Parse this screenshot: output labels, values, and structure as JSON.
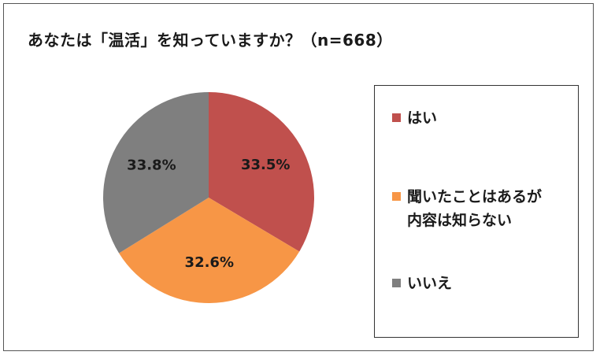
{
  "chart_data": {
    "type": "pie",
    "title": "あなたは「温活」を知っていますか？（n=668）",
    "slices": [
      {
        "label": "はい",
        "value": 33.5,
        "display": "33.5%",
        "color": "#c0504d"
      },
      {
        "label": "聞いたことはあるが内容は知らない",
        "label_lines": [
          "聞いたことはあるが",
          "内容は知らない"
        ],
        "value": 32.6,
        "display": "32.6%",
        "color": "#f79646"
      },
      {
        "label": "いいえ",
        "value": 33.8,
        "display": "33.8%",
        "color": "#7f7f7f"
      }
    ],
    "legend_position": "right"
  }
}
